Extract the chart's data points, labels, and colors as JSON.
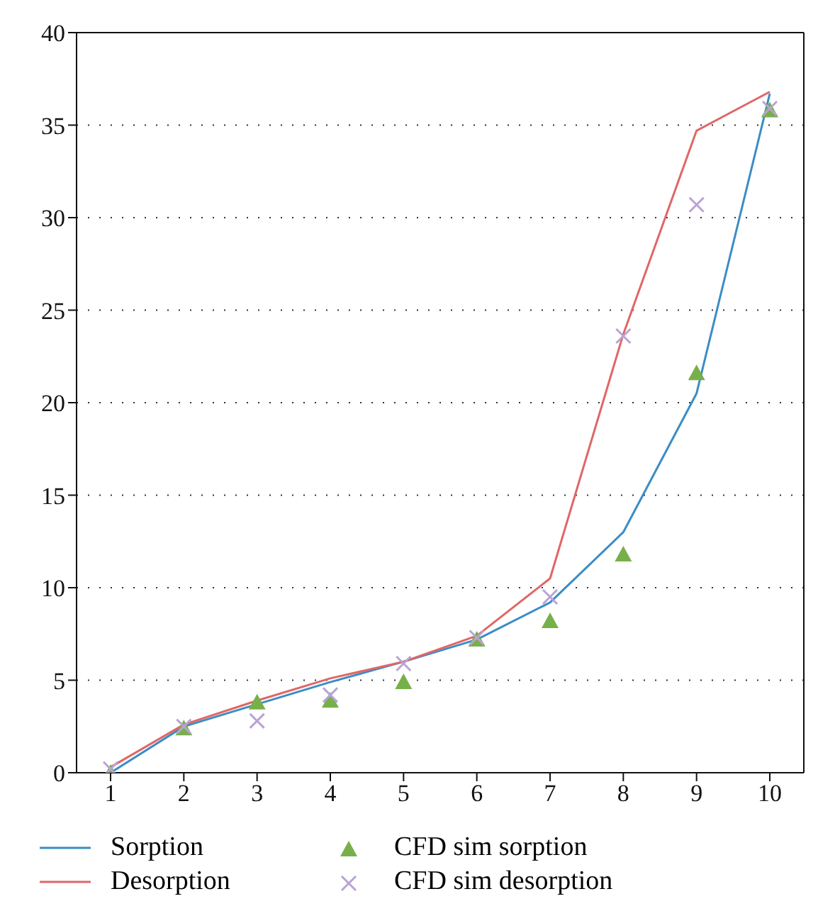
{
  "chart_data": {
    "type": "line",
    "categories": [
      "1",
      "2",
      "3",
      "4",
      "5",
      "6",
      "7",
      "8",
      "9",
      "10"
    ],
    "series": [
      {
        "name": "Sorption",
        "color": "#3b8dc5",
        "marker": "none",
        "values": [
          0,
          2.5,
          3.7,
          4.9,
          6.0,
          7.2,
          9.2,
          13.0,
          20.5,
          36.7
        ]
      },
      {
        "name": "Desorption",
        "color": "#e06666",
        "marker": "none",
        "values": [
          0.3,
          2.6,
          3.9,
          5.1,
          6.0,
          7.4,
          10.5,
          23.7,
          34.7,
          36.8
        ]
      },
      {
        "name": "CFD sim sorption",
        "type": "scatter",
        "color": "#77b04a",
        "marker": "triangle",
        "values": [
          0,
          2.4,
          3.8,
          3.9,
          4.9,
          7.2,
          8.2,
          11.8,
          21.6,
          35.8
        ]
      },
      {
        "name": "CFD sim desorption",
        "type": "scatter",
        "color": "#b9a3d3",
        "marker": "cross",
        "values": [
          0.2,
          2.5,
          2.8,
          4.2,
          5.9,
          7.3,
          9.5,
          23.6,
          30.7,
          35.9
        ]
      }
    ],
    "ylim": [
      0,
      40
    ],
    "yticks": [
      0,
      5,
      10,
      15,
      20,
      25,
      30,
      35,
      40
    ],
    "grid": "y",
    "legend": "bottom"
  }
}
